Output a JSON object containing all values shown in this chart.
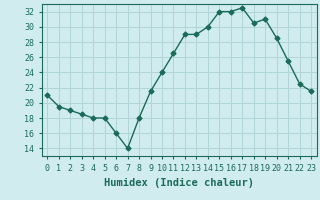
{
  "x": [
    0,
    1,
    2,
    3,
    4,
    5,
    6,
    7,
    8,
    9,
    10,
    11,
    12,
    13,
    14,
    15,
    16,
    17,
    18,
    19,
    20,
    21,
    22,
    23
  ],
  "y": [
    21,
    19.5,
    19,
    18.5,
    18,
    18,
    16,
    14,
    18,
    21.5,
    24,
    26.5,
    29,
    29,
    30,
    32,
    32,
    32.5,
    30.5,
    31,
    28.5,
    25.5,
    22.5,
    21.5
  ],
  "line_color": "#1a6b5a",
  "marker": "D",
  "marker_size": 2.5,
  "bg_color": "#d0ecee",
  "grid_color": "#b0d4d8",
  "xlim": [
    -0.5,
    23.5
  ],
  "ylim": [
    13,
    33
  ],
  "yticks": [
    14,
    16,
    18,
    20,
    22,
    24,
    26,
    28,
    30,
    32
  ],
  "xticks": [
    0,
    1,
    2,
    3,
    4,
    5,
    6,
    7,
    8,
    9,
    10,
    11,
    12,
    13,
    14,
    15,
    16,
    17,
    18,
    19,
    20,
    21,
    22,
    23
  ],
  "xtick_labels": [
    "0",
    "1",
    "2",
    "3",
    "4",
    "5",
    "6",
    "7",
    "8",
    "9",
    "10",
    "11",
    "12",
    "13",
    "14",
    "15",
    "16",
    "17",
    "18",
    "19",
    "20",
    "21",
    "22",
    "23"
  ],
  "tick_color": "#1a6b5a",
  "spine_color": "#1a6b5a",
  "tick_fontsize": 6,
  "xlabel": "Humidex (Indice chaleur)",
  "xlabel_fontsize": 7.5
}
